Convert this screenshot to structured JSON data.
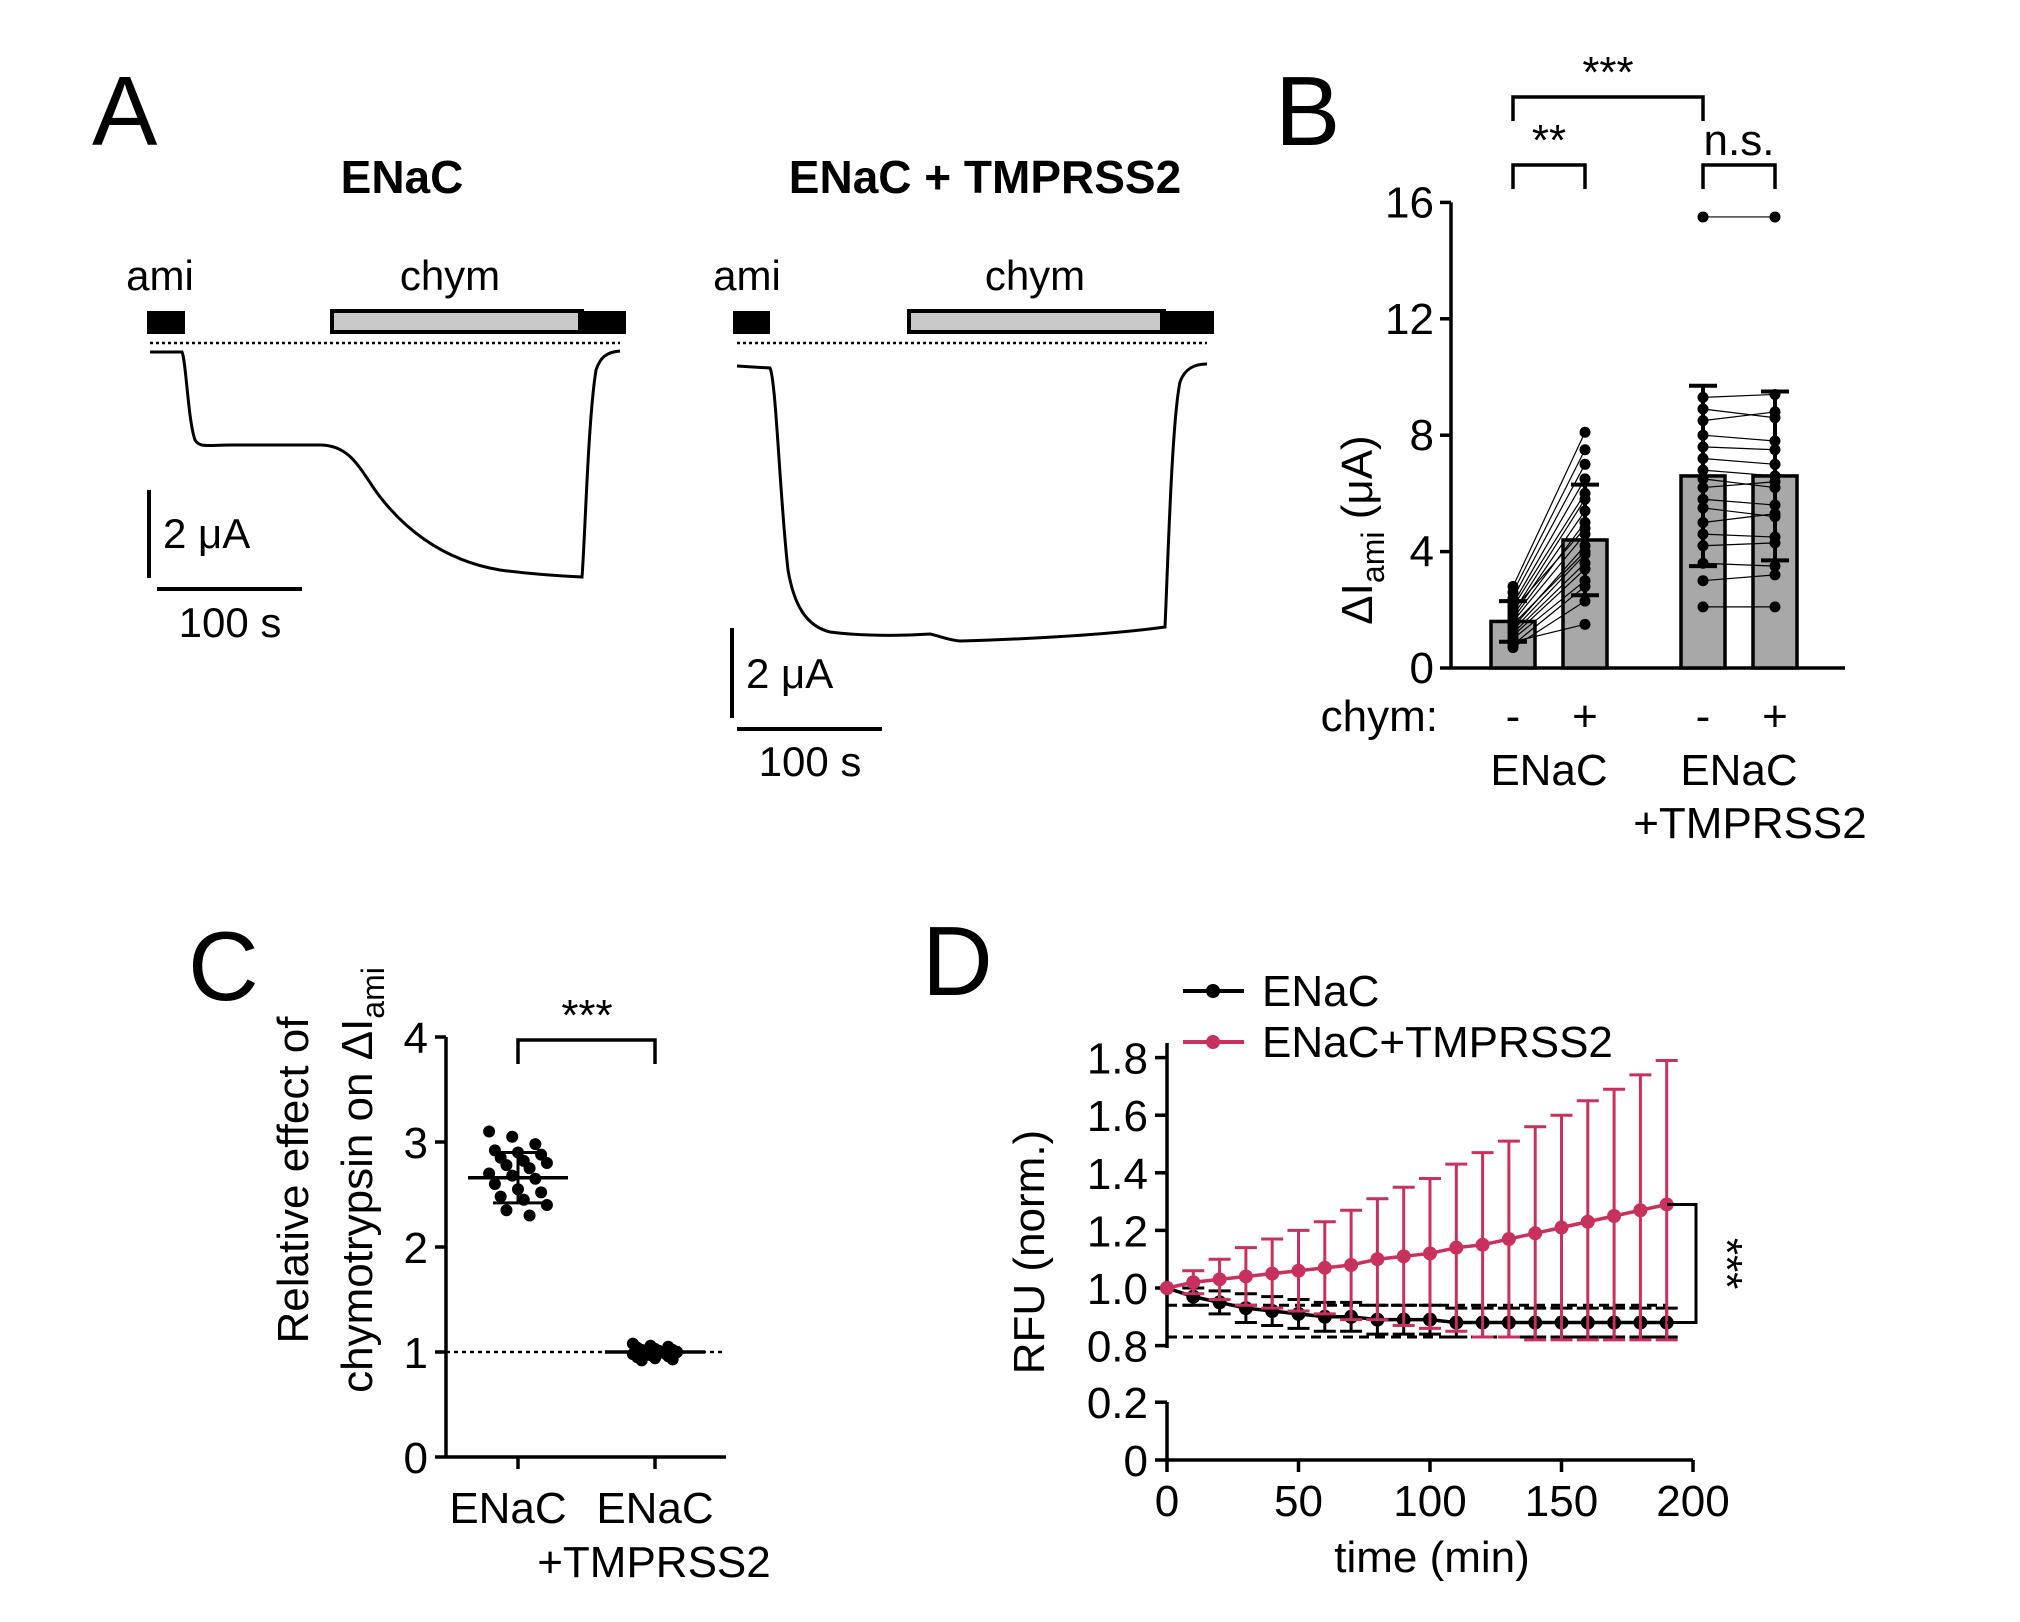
{
  "panels": {
    "A": {
      "letter": "A",
      "traces": [
        {
          "title": "ENaC",
          "ami_label": "ami",
          "chym_label": "chym",
          "scale_current": "2 μA",
          "scale_time": "100 s"
        },
        {
          "title": "ENaC + TMPRSS2",
          "ami_label": "ami",
          "chym_label": "chym",
          "scale_current": "2 μA",
          "scale_time": "100 s"
        }
      ]
    },
    "B": {
      "letter": "B",
      "row_label": "chym:",
      "ylabel_main": "ΔI",
      "ylabel_sub": "ami",
      "ylabel_unit": "(μA)"
    },
    "C": {
      "letter": "C",
      "ylabel_line1": "Relative effect of",
      "ylabel_line2": "chymotrypsin on ΔI",
      "ylabel_sub": "ami"
    },
    "D": {
      "letter": "D"
    }
  },
  "chart_data": [
    {
      "panel": "B",
      "type": "bar",
      "categories": [
        "-",
        "+",
        "-",
        "+"
      ],
      "groups": [
        {
          "label": "ENaC",
          "categories": [
            0,
            1
          ]
        },
        {
          "label_line1": "ENaC",
          "label_line2": "+TMPRSS2",
          "categories": [
            2,
            3
          ]
        }
      ],
      "means": [
        1.6,
        4.4,
        6.6,
        6.6
      ],
      "sd": [
        0.7,
        1.9,
        3.1,
        2.9
      ],
      "paired_points": [
        [
          [
            0.7,
            2.3
          ],
          [
            0.8,
            2.8
          ],
          [
            0.9,
            1.5
          ],
          [
            1.0,
            3.0
          ],
          [
            1.1,
            3.4
          ],
          [
            1.2,
            3.6
          ],
          [
            1.3,
            3.9
          ],
          [
            1.4,
            4.2
          ],
          [
            1.5,
            4.0
          ],
          [
            1.6,
            4.6
          ],
          [
            1.7,
            5.0
          ],
          [
            1.8,
            5.4
          ],
          [
            1.9,
            5.8
          ],
          [
            2.0,
            4.8
          ],
          [
            2.1,
            6.0
          ],
          [
            2.2,
            6.5
          ],
          [
            2.4,
            7.0
          ],
          [
            2.6,
            7.5
          ],
          [
            2.8,
            8.1
          ]
        ],
        [
          [
            15.5,
            15.5
          ],
          [
            9.3,
            9.4
          ],
          [
            8.9,
            8.6
          ],
          [
            8.5,
            8.8
          ],
          [
            8.0,
            7.8
          ],
          [
            7.6,
            7.5
          ],
          [
            7.2,
            7.0
          ],
          [
            6.8,
            6.6
          ],
          [
            6.5,
            6.2
          ],
          [
            6.2,
            6.4
          ],
          [
            5.8,
            5.6
          ],
          [
            5.5,
            5.2
          ],
          [
            5.0,
            5.3
          ],
          [
            4.6,
            4.5
          ],
          [
            4.2,
            4.3
          ],
          [
            3.6,
            3.5
          ],
          [
            3.0,
            3.2
          ],
          [
            2.1,
            2.1
          ]
        ]
      ],
      "ylim": [
        0,
        16
      ],
      "yticks": [
        0,
        4,
        8,
        12,
        16
      ],
      "significance": [
        {
          "between": [
            0,
            1
          ],
          "label": "**"
        },
        {
          "between": [
            2,
            3
          ],
          "label": "n.s."
        },
        {
          "between": [
            0,
            2
          ],
          "label": "***"
        }
      ]
    },
    {
      "panel": "C",
      "type": "scatter",
      "categories": [
        "ENaC",
        "ENaC +TMPRSS2"
      ],
      "category_labels": [
        [
          "ENaC"
        ],
        [
          "ENaC",
          "+TMPRSS2"
        ]
      ],
      "means": [
        2.66,
        1.0
      ],
      "sd": [
        0.24,
        0.04
      ],
      "points": [
        [
          3.1,
          3.05,
          2.98,
          2.92,
          2.9,
          2.88,
          2.85,
          2.82,
          2.8,
          2.78,
          2.75,
          2.7,
          2.68,
          2.65,
          2.6,
          2.55,
          2.52,
          2.48,
          2.45,
          2.4,
          2.35,
          2.3
        ],
        [
          1.08,
          1.06,
          1.05,
          1.04,
          1.03,
          1.02,
          1.02,
          1.01,
          1.0,
          1.0,
          0.99,
          0.98,
          0.97,
          0.96,
          0.95,
          0.94,
          0.93,
          0.92
        ]
      ],
      "reference_line": 1,
      "ylim": [
        0,
        4
      ],
      "yticks": [
        0,
        1,
        2,
        3,
        4
      ],
      "significance": {
        "label": "***"
      }
    },
    {
      "panel": "D",
      "type": "line",
      "xlabel": "time (min)",
      "ylabel": "RFU (norm.)",
      "xlim": [
        0,
        200
      ],
      "xticks": [
        0,
        50,
        100,
        150,
        200
      ],
      "yticks": [
        0,
        0.2,
        0.8,
        1.0,
        1.2,
        1.4,
        1.6,
        1.8
      ],
      "x": [
        0,
        10,
        20,
        30,
        40,
        50,
        60,
        70,
        80,
        90,
        100,
        110,
        120,
        130,
        140,
        150,
        160,
        170,
        180,
        190
      ],
      "series": [
        {
          "name": "ENaC",
          "color": "#000000",
          "values": [
            1.0,
            0.97,
            0.95,
            0.93,
            0.92,
            0.91,
            0.9,
            0.9,
            0.89,
            0.89,
            0.89,
            0.88,
            0.88,
            0.88,
            0.88,
            0.88,
            0.88,
            0.88,
            0.88,
            0.88
          ],
          "sd": [
            0.0,
            0.03,
            0.04,
            0.05,
            0.05,
            0.05,
            0.05,
            0.05,
            0.05,
            0.05,
            0.05,
            0.05,
            0.05,
            0.05,
            0.05,
            0.05,
            0.05,
            0.05,
            0.05,
            0.05
          ]
        },
        {
          "name": "ENaC+TMPRSS2",
          "color": "#c8305e",
          "values": [
            1.0,
            1.02,
            1.03,
            1.04,
            1.05,
            1.06,
            1.07,
            1.08,
            1.1,
            1.11,
            1.12,
            1.14,
            1.15,
            1.17,
            1.19,
            1.21,
            1.23,
            1.25,
            1.27,
            1.29
          ],
          "sd": [
            0.0,
            0.04,
            0.07,
            0.1,
            0.12,
            0.14,
            0.16,
            0.19,
            0.21,
            0.24,
            0.26,
            0.29,
            0.32,
            0.34,
            0.37,
            0.39,
            0.42,
            0.44,
            0.47,
            0.5
          ]
        }
      ],
      "significance": {
        "label": "***"
      }
    }
  ]
}
